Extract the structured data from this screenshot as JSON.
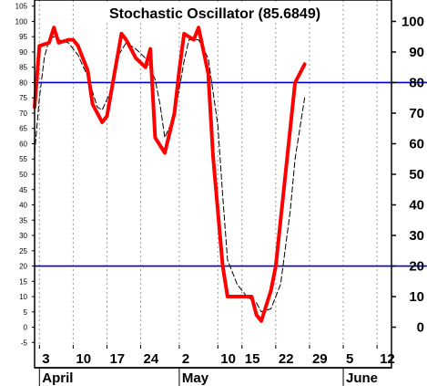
{
  "chart_data": {
    "type": "line",
    "title": "Stochastic Oscillator (85.6849)",
    "ylim": [
      -7,
      107
    ],
    "left_ticks": [
      "-5",
      "0",
      "5",
      "10",
      "15",
      "20",
      "25",
      "30",
      "35",
      "40",
      "45",
      "50",
      "55",
      "60",
      "65",
      "70",
      "75",
      "80",
      "85",
      "90",
      "95",
      "100",
      "105"
    ],
    "right_ticks": [
      "0",
      "10",
      "20",
      "30",
      "40",
      "50",
      "60",
      "70",
      "80",
      "90",
      "100"
    ],
    "x_ticks": [
      "3",
      "10",
      "17",
      "24",
      "2",
      "10",
      "15",
      "22",
      "29",
      "5",
      "12"
    ],
    "x_tick_days": [
      0,
      7,
      14,
      21,
      29,
      37,
      42,
      49,
      56,
      63,
      70
    ],
    "months": [
      {
        "label": "April",
        "day": 0
      },
      {
        "label": "May",
        "day": 29
      },
      {
        "label": "June",
        "day": 63
      }
    ],
    "xlim": [
      -1,
      73
    ],
    "reference_lines": [
      80,
      20
    ],
    "grid": "vertical dotted",
    "series": [
      {
        "style": "thick red",
        "color": "#ff0000",
        "points": [
          [
            -1,
            72
          ],
          [
            0,
            92
          ],
          [
            2,
            93
          ],
          [
            3,
            98
          ],
          [
            4,
            93
          ],
          [
            6,
            94
          ],
          [
            7,
            94
          ],
          [
            8,
            92
          ],
          [
            10,
            84
          ],
          [
            11,
            73
          ],
          [
            13,
            67
          ],
          [
            14,
            69
          ],
          [
            16,
            87
          ],
          [
            17,
            96
          ],
          [
            18,
            94
          ],
          [
            20,
            88
          ],
          [
            22,
            85
          ],
          [
            23,
            91
          ],
          [
            24,
            62
          ],
          [
            26,
            57
          ],
          [
            28,
            70
          ],
          [
            29,
            84
          ],
          [
            30,
            96
          ],
          [
            32,
            94
          ],
          [
            33,
            98
          ],
          [
            35,
            83
          ],
          [
            36,
            56
          ],
          [
            38,
            20
          ],
          [
            39,
            10
          ],
          [
            42,
            10
          ],
          [
            44,
            10
          ],
          [
            45,
            4
          ],
          [
            46,
            2
          ],
          [
            48,
            12
          ],
          [
            49,
            20
          ],
          [
            51,
            50
          ],
          [
            53,
            80
          ],
          [
            55,
            86
          ]
        ]
      },
      {
        "style": "thin dashed black",
        "color": "#000000",
        "points": [
          [
            -1,
            57
          ],
          [
            0,
            75
          ],
          [
            1,
            88
          ],
          [
            2,
            94
          ],
          [
            3,
            95
          ],
          [
            4,
            94
          ],
          [
            6,
            93
          ],
          [
            8,
            89
          ],
          [
            10,
            82
          ],
          [
            12,
            72
          ],
          [
            13,
            71
          ],
          [
            15,
            78
          ],
          [
            16,
            88
          ],
          [
            18,
            93
          ],
          [
            20,
            91
          ],
          [
            22,
            88
          ],
          [
            24,
            81
          ],
          [
            25,
            73
          ],
          [
            26,
            62
          ],
          [
            28,
            69
          ],
          [
            30,
            87
          ],
          [
            31,
            94
          ],
          [
            33,
            94
          ],
          [
            35,
            88
          ],
          [
            37,
            66
          ],
          [
            38,
            43
          ],
          [
            39,
            22
          ],
          [
            41,
            14
          ],
          [
            43,
            10
          ],
          [
            45,
            8
          ],
          [
            46,
            5
          ],
          [
            48,
            6
          ],
          [
            50,
            14
          ],
          [
            52,
            38
          ],
          [
            53,
            55
          ],
          [
            55,
            75
          ]
        ]
      }
    ]
  }
}
